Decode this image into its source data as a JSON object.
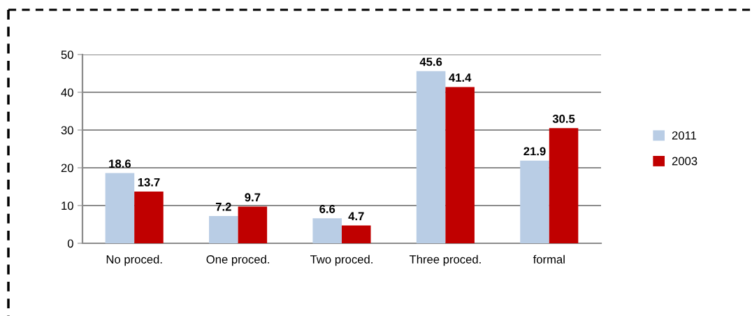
{
  "chart_data": {
    "type": "bar",
    "categories": [
      "No proced.",
      "One proced.",
      "Two proced.",
      "Three proced.",
      "formal"
    ],
    "series": [
      {
        "name": "2011",
        "color": "#b9cde5",
        "values": [
          18.6,
          7.2,
          6.6,
          45.6,
          21.9
        ]
      },
      {
        "name": "2003",
        "color": "#c00000",
        "values": [
          13.7,
          9.7,
          4.7,
          41.4,
          30.5
        ]
      }
    ],
    "ylim": [
      0,
      50
    ],
    "yticks": [
      0,
      10,
      20,
      30,
      40,
      50
    ],
    "grid": "y",
    "legend": "right",
    "data_labels": true
  }
}
